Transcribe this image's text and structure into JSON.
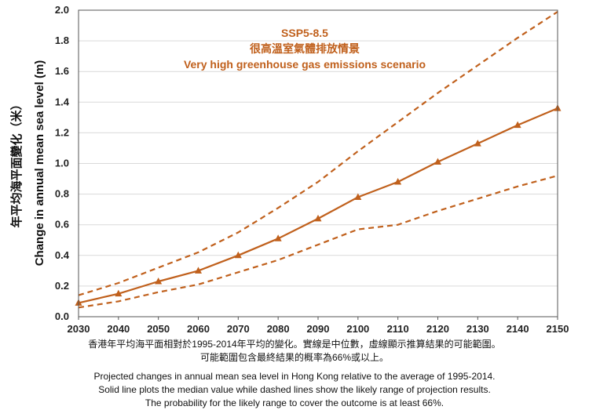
{
  "chart_data": {
    "type": "line",
    "x": [
      2030,
      2040,
      2050,
      2060,
      2070,
      2080,
      2090,
      2100,
      2110,
      2120,
      2130,
      2140,
      2150
    ],
    "ylim": [
      0,
      2.0
    ],
    "y_ticks": [
      "0.0",
      "0.2",
      "0.4",
      "0.6",
      "0.8",
      "1.0",
      "1.2",
      "1.4",
      "1.6",
      "1.8",
      "2.0"
    ],
    "x_ticks": [
      "2030",
      "2040",
      "2050",
      "2060",
      "2070",
      "2080",
      "2090",
      "2100",
      "2110",
      "2120",
      "2130",
      "2140",
      "2150"
    ],
    "ylabel_zh": "年平均海平面變化（米）",
    "ylabel_en": "Change in annual mean sea level (m)",
    "annotation": {
      "line1": "SSP5-8.5",
      "line2": "很高溫室氣體排放情景",
      "line3": "Very high greenhouse gas emissions scenario"
    },
    "color": "#c0601c",
    "series": [
      {
        "style": "solid-triangle",
        "values": [
          0.09,
          0.15,
          0.23,
          0.3,
          0.4,
          0.51,
          0.64,
          0.78,
          0.88,
          1.01,
          1.13,
          1.25,
          1.36
        ]
      },
      {
        "style": "dashed",
        "values": [
          0.14,
          0.22,
          0.32,
          0.42,
          0.55,
          0.71,
          0.88,
          1.08,
          1.27,
          1.46,
          1.64,
          1.82,
          1.99
        ]
      },
      {
        "style": "dashed",
        "values": [
          0.06,
          0.1,
          0.16,
          0.21,
          0.29,
          0.37,
          0.47,
          0.57,
          0.6,
          0.69,
          0.77,
          0.85,
          0.92
        ]
      }
    ]
  },
  "caption": {
    "zh_line1": "香港年平均海平面相對於1995-2014年平均的變化。實線是中位數，虛線顯示推算結果的可能範圍。",
    "zh_line2": "可能範圍包含最終結果的概率為66%或以上。",
    "en_line1": "Projected changes in annual mean sea level in Hong Kong relative to the average of 1995-2014.",
    "en_line2": "Solid line plots the median value while dashed lines show the likely range of projection results.",
    "en_line3": "The probability for the likely range to cover the outcome is at least 66%."
  }
}
